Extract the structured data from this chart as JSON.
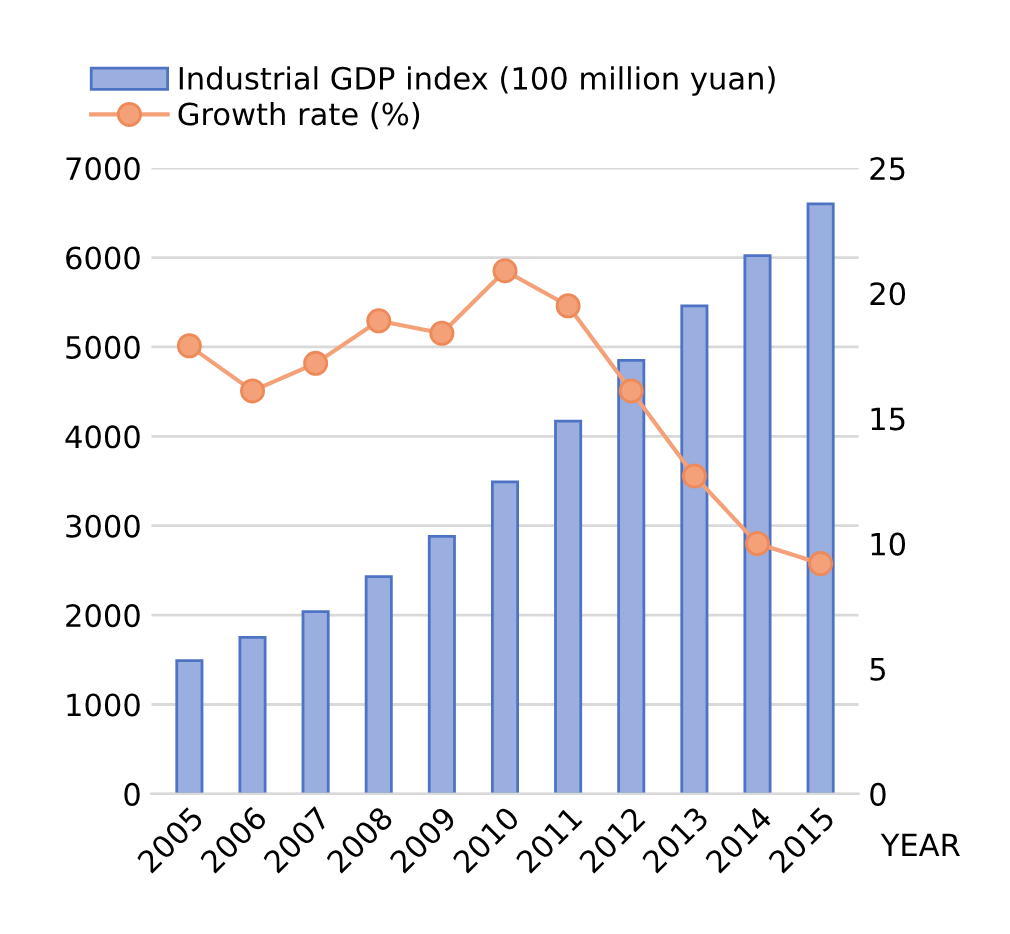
{
  "chart_data": {
    "type": "bar",
    "xlabel": "YEAR",
    "categories": [
      "2005",
      "2006",
      "2007",
      "2008",
      "2009",
      "2010",
      "2011",
      "2012",
      "2013",
      "2014",
      "2015"
    ],
    "series": [
      {
        "name": "Industrial GDP index (100 million yuan)",
        "color": "#9aaee0",
        "values": [
          1490,
          1750,
          2040,
          2430,
          2880,
          3490,
          4170,
          4850,
          5460,
          6020,
          6600
        ]
      },
      {
        "name": "Growth rate (%)",
        "type": "line",
        "axis": "y2",
        "color": "#f4a078",
        "marker": "circle",
        "values": [
          17.9,
          16.1,
          17.2,
          18.9,
          18.4,
          20.9,
          19.5,
          16.1,
          12.7,
          10.0,
          9.2
        ]
      }
    ],
    "ylim": [
      0,
      7000
    ],
    "yticks": [
      0,
      1000,
      2000,
      3000,
      4000,
      5000,
      6000,
      7000
    ],
    "y2lim": [
      0,
      25
    ],
    "y2ticks": [
      0,
      5,
      10,
      15,
      20,
      25
    ],
    "grid": "y",
    "legend": "top"
  }
}
